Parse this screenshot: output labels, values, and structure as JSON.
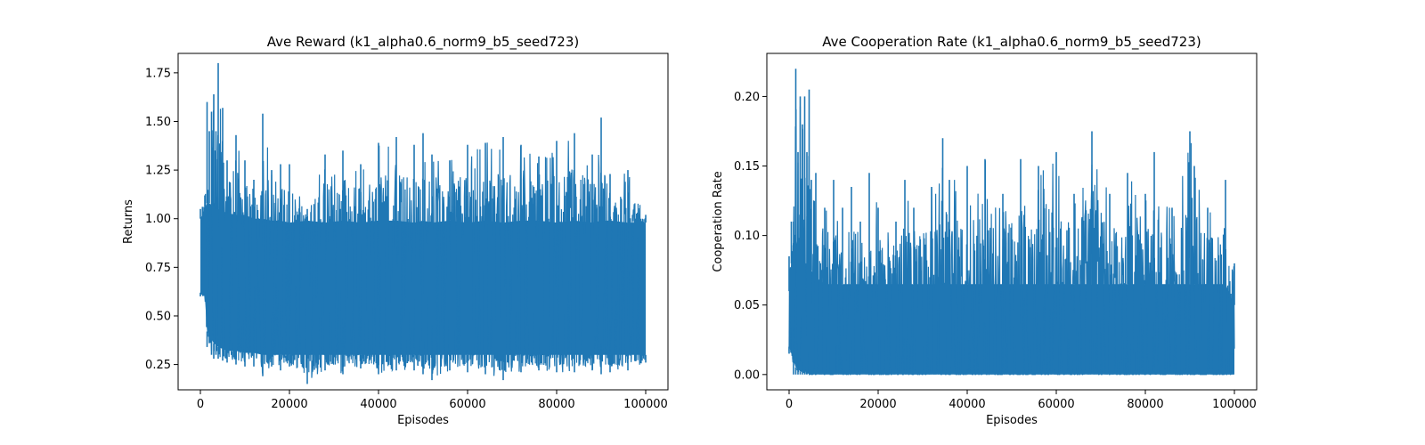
{
  "chart_data": [
    {
      "type": "line",
      "title": "Ave Reward (k1_alpha0.6_norm9_b5_seed723)",
      "xlabel": "Episodes",
      "ylabel": "Returns",
      "xlim": [
        -5000,
        105000
      ],
      "ylim": [
        0.12,
        1.85
      ],
      "xticks": [
        0,
        20000,
        40000,
        60000,
        80000,
        100000
      ],
      "xtick_labels": [
        "0",
        "20000",
        "40000",
        "60000",
        "80000",
        "100000"
      ],
      "yticks": [
        0.25,
        0.5,
        0.75,
        1.0,
        1.25,
        1.5,
        1.75
      ],
      "ytick_labels": [
        "0.25",
        "0.50",
        "0.75",
        "1.00",
        "1.25",
        "1.50",
        "1.75"
      ],
      "grid": false,
      "series": [
        {
          "color": "#1f77b4",
          "x": [
            0,
            1000,
            1500,
            2000,
            2500,
            3000,
            3500,
            4000,
            5000,
            6000,
            8000,
            10000,
            12000,
            14000,
            16000,
            18000,
            20000,
            24000,
            28000,
            32000,
            36000,
            40000,
            44000,
            48000,
            50000,
            52000,
            56000,
            60000,
            64000,
            68000,
            72000,
            76000,
            80000,
            84000,
            88000,
            90000,
            92000,
            96000,
            100000
          ],
          "upper": [
            1.05,
            1.12,
            1.6,
            1.45,
            1.55,
            1.64,
            1.45,
            1.8,
            1.57,
            1.3,
            1.43,
            1.3,
            1.2,
            1.54,
            1.25,
            1.28,
            1.28,
            1.05,
            1.33,
            1.35,
            1.28,
            1.39,
            1.42,
            1.38,
            1.44,
            1.33,
            1.3,
            1.38,
            1.39,
            1.42,
            1.38,
            1.32,
            1.4,
            1.44,
            1.33,
            1.52,
            1.23,
            1.25,
            1.02
          ],
          "lower": [
            0.6,
            0.6,
            0.34,
            0.36,
            0.3,
            0.28,
            0.3,
            0.28,
            0.27,
            0.26,
            0.25,
            0.24,
            0.24,
            0.19,
            0.24,
            0.22,
            0.24,
            0.15,
            0.22,
            0.2,
            0.23,
            0.2,
            0.22,
            0.22,
            0.2,
            0.17,
            0.22,
            0.21,
            0.2,
            0.17,
            0.21,
            0.22,
            0.21,
            0.21,
            0.22,
            0.2,
            0.21,
            0.22,
            0.26
          ],
          "band_top": [
            1.0,
            1.05,
            1.08,
            1.08,
            1.07,
            1.06,
            1.05,
            1.05,
            1.04,
            1.03,
            1.02,
            1.02,
            1.0,
            1.0,
            0.99,
            0.99,
            0.98,
            0.99,
            0.98,
            0.99,
            0.98,
            0.99,
            0.99,
            0.98,
            0.99,
            0.98,
            0.99,
            0.98,
            0.99,
            0.98,
            0.99,
            0.99,
            0.98,
            0.99,
            0.98,
            0.99,
            0.99,
            0.98,
            0.98
          ],
          "band_bottom": [
            0.62,
            0.6,
            0.42,
            0.4,
            0.38,
            0.36,
            0.35,
            0.34,
            0.33,
            0.32,
            0.32,
            0.31,
            0.31,
            0.3,
            0.3,
            0.3,
            0.3,
            0.3,
            0.3,
            0.3,
            0.3,
            0.3,
            0.3,
            0.3,
            0.3,
            0.3,
            0.3,
            0.3,
            0.3,
            0.3,
            0.3,
            0.3,
            0.3,
            0.3,
            0.3,
            0.3,
            0.3,
            0.3,
            0.3
          ]
        }
      ]
    },
    {
      "type": "line",
      "title": "Ave Cooperation Rate (k1_alpha0.6_norm9_b5_seed723)",
      "xlabel": "Episodes",
      "ylabel": "Cooperation Rate",
      "xlim": [
        -5000,
        105000
      ],
      "ylim": [
        -0.011,
        0.231
      ],
      "xticks": [
        0,
        20000,
        40000,
        60000,
        80000,
        100000
      ],
      "xtick_labels": [
        "0",
        "20000",
        "40000",
        "60000",
        "80000",
        "100000"
      ],
      "yticks": [
        0.0,
        0.05,
        0.1,
        0.15,
        0.2
      ],
      "ytick_labels": [
        "0.00",
        "0.05",
        "0.10",
        "0.15",
        "0.20"
      ],
      "grid": false,
      "series": [
        {
          "color": "#1f77b4",
          "x": [
            0,
            500,
            1000,
            1500,
            2000,
            2500,
            3000,
            3500,
            4000,
            4500,
            5000,
            6000,
            8000,
            10000,
            12000,
            14000,
            16000,
            18000,
            20000,
            24000,
            26000,
            28000,
            32000,
            34500,
            36000,
            40000,
            44000,
            48000,
            52000,
            56000,
            60000,
            64000,
            68000,
            72000,
            76000,
            80000,
            82000,
            86000,
            90000,
            91000,
            94000,
            98000,
            100000
          ],
          "upper": [
            0.085,
            0.11,
            0.11,
            0.22,
            0.16,
            0.2,
            0.18,
            0.2,
            0.16,
            0.205,
            0.14,
            0.145,
            0.12,
            0.14,
            0.12,
            0.135,
            0.11,
            0.145,
            0.12,
            0.11,
            0.14,
            0.12,
            0.135,
            0.17,
            0.14,
            0.15,
            0.155,
            0.13,
            0.155,
            0.15,
            0.16,
            0.13,
            0.175,
            0.13,
            0.145,
            0.13,
            0.16,
            0.12,
            0.175,
            0.15,
            0.12,
            0.14,
            0.08
          ],
          "lower": [
            0.015,
            0.015,
            0.0,
            0.0,
            0.0,
            0.0,
            0.0,
            0.0,
            0.0,
            0.0,
            0.0,
            0.0,
            0.0,
            0.0,
            0.0,
            0.0,
            0.0,
            0.0,
            0.0,
            0.0,
            0.0,
            0.0,
            0.0,
            0.0,
            0.0,
            0.0,
            0.0,
            0.0,
            0.0,
            0.0,
            0.0,
            0.0,
            0.0,
            0.0,
            0.0,
            0.0,
            0.0,
            0.0,
            0.0,
            0.0,
            0.0,
            0.0,
            0.0
          ],
          "band_top": [
            0.06,
            0.08,
            0.09,
            0.1,
            0.09,
            0.09,
            0.085,
            0.08,
            0.08,
            0.08,
            0.075,
            0.07,
            0.065,
            0.065,
            0.065,
            0.065,
            0.065,
            0.065,
            0.065,
            0.065,
            0.065,
            0.065,
            0.065,
            0.065,
            0.065,
            0.065,
            0.065,
            0.065,
            0.065,
            0.065,
            0.065,
            0.065,
            0.065,
            0.065,
            0.065,
            0.065,
            0.065,
            0.065,
            0.065,
            0.065,
            0.065,
            0.065,
            0.05
          ],
          "band_bottom": [
            0.02,
            0.015,
            0.01,
            0.005,
            0.005,
            0.002,
            0.002,
            0.002,
            0.002,
            0.0,
            0.0,
            0.0,
            0.0,
            0.0,
            0.0,
            0.0,
            0.0,
            0.0,
            0.0,
            0.0,
            0.0,
            0.0,
            0.0,
            0.0,
            0.0,
            0.0,
            0.0,
            0.0,
            0.0,
            0.0,
            0.0,
            0.0,
            0.0,
            0.0,
            0.0,
            0.0,
            0.0,
            0.0,
            0.0,
            0.0,
            0.0,
            0.0,
            0.0
          ]
        }
      ]
    }
  ]
}
